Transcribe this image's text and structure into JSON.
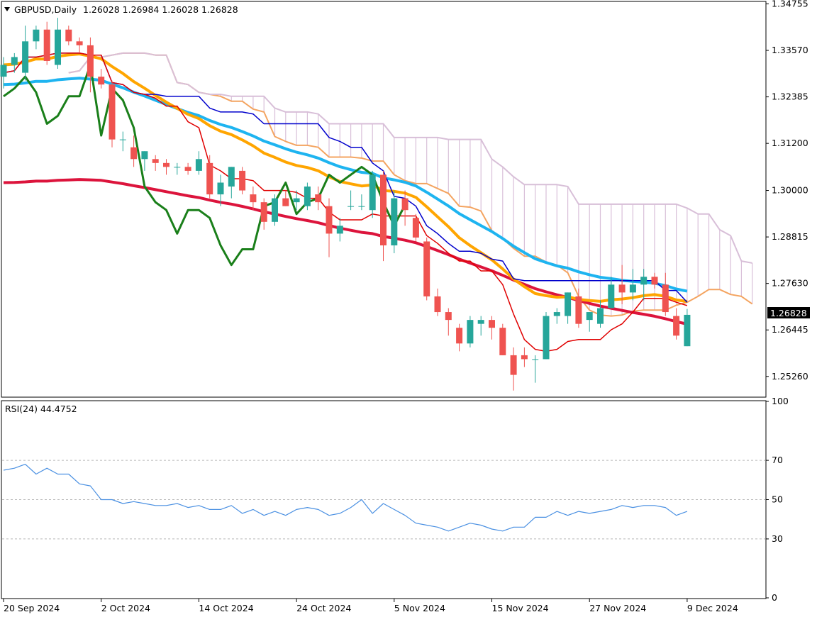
{
  "symbol_header": "GBPUSD,Daily",
  "ohlc_header": "1.26028 1.26984 1.26028 1.26828",
  "rsi_header": "RSI(24) 44.4752",
  "current_price_label": "1.26828",
  "colors": {
    "bull": "#26a69a",
    "bear": "#ef5350",
    "tenkan": "#e00000",
    "kijun": "#0000cc",
    "span_a": "#f4a460",
    "span_b": "#d8bfd8",
    "ma_orange": "#ffa500",
    "ma_blue": "#1eb4f0",
    "ma_red": "#dc143c",
    "chikou": "#1a7f1a",
    "rsi": "#4a90e2"
  },
  "chart_data": [
    {
      "type": "candlestick",
      "y_ticks": [
        "1.34755",
        "1.33570",
        "1.32385",
        "1.31200",
        "1.30000",
        "1.28815",
        "1.27630",
        "1.26445",
        "1.25260"
      ],
      "x_tick_labels": [
        "20 Sep 2024",
        "2 Oct 2024",
        "14 Oct 2024",
        "24 Oct 2024",
        "5 Nov 2024",
        "15 Nov 2024",
        "27 Nov 2024",
        "9 Dec 2024"
      ],
      "x_tick_index": [
        0,
        9,
        18,
        27,
        36,
        45,
        54,
        63
      ],
      "ylim": [
        1.2475,
        1.348
      ],
      "candles": [
        [
          1.329,
          1.334,
          1.326,
          1.332
        ],
        [
          1.332,
          1.335,
          1.33,
          1.334
        ],
        [
          1.33,
          1.342,
          1.328,
          1.338
        ],
        [
          1.338,
          1.342,
          1.336,
          1.341
        ],
        [
          1.341,
          1.343,
          1.332,
          1.333
        ],
        [
          1.332,
          1.344,
          1.331,
          1.341
        ],
        [
          1.341,
          1.342,
          1.337,
          1.338
        ],
        [
          1.338,
          1.339,
          1.335,
          1.337
        ],
        [
          1.337,
          1.339,
          1.325,
          1.329
        ],
        [
          1.329,
          1.331,
          1.326,
          1.327
        ],
        [
          1.327,
          1.328,
          1.311,
          1.313
        ],
        [
          1.313,
          1.315,
          1.31,
          1.313
        ],
        [
          1.311,
          1.314,
          1.306,
          1.308
        ],
        [
          1.308,
          1.31,
          1.305,
          1.31
        ],
        [
          1.308,
          1.309,
          1.305,
          1.307
        ],
        [
          1.307,
          1.308,
          1.304,
          1.306
        ],
        [
          1.306,
          1.307,
          1.304,
          1.306
        ],
        [
          1.306,
          1.307,
          1.304,
          1.305
        ],
        [
          1.305,
          1.31,
          1.304,
          1.308
        ],
        [
          1.307,
          1.309,
          1.298,
          1.299
        ],
        [
          1.299,
          1.304,
          1.296,
          1.302
        ],
        [
          1.301,
          1.306,
          1.298,
          1.306
        ],
        [
          1.305,
          1.306,
          1.299,
          1.3
        ],
        [
          1.299,
          1.301,
          1.295,
          1.297
        ],
        [
          1.297,
          1.298,
          1.29,
          1.292
        ],
        [
          1.292,
          1.299,
          1.291,
          1.298
        ],
        [
          1.298,
          1.3,
          1.296,
          1.296
        ],
        [
          1.297,
          1.3,
          1.295,
          1.298
        ],
        [
          1.296,
          1.302,
          1.295,
          1.301
        ],
        [
          1.299,
          1.301,
          1.295,
          1.297
        ],
        [
          1.296,
          1.298,
          1.283,
          1.289
        ],
        [
          1.289,
          1.293,
          1.287,
          1.291
        ],
        [
          1.296,
          1.3,
          1.295,
          1.296
        ],
        [
          1.296,
          1.299,
          1.295,
          1.296
        ],
        [
          1.295,
          1.305,
          1.293,
          1.304
        ],
        [
          1.304,
          1.305,
          1.282,
          1.286
        ],
        [
          1.286,
          1.3,
          1.284,
          1.298
        ],
        [
          1.298,
          1.3,
          1.291,
          1.295
        ],
        [
          1.293,
          1.294,
          1.287,
          1.288
        ],
        [
          1.287,
          1.288,
          1.272,
          1.273
        ],
        [
          1.273,
          1.275,
          1.268,
          1.269
        ],
        [
          1.269,
          1.27,
          1.263,
          1.267
        ],
        [
          1.265,
          1.266,
          1.259,
          1.261
        ],
        [
          1.261,
          1.268,
          1.26,
          1.267
        ],
        [
          1.266,
          1.268,
          1.263,
          1.267
        ],
        [
          1.267,
          1.268,
          1.262,
          1.265
        ],
        [
          1.265,
          1.266,
          1.258,
          1.258
        ],
        [
          1.258,
          1.26,
          1.249,
          1.253
        ],
        [
          1.258,
          1.26,
          1.255,
          1.257
        ],
        [
          1.257,
          1.258,
          1.251,
          1.257
        ],
        [
          1.257,
          1.269,
          1.257,
          1.268
        ],
        [
          1.268,
          1.27,
          1.266,
          1.269
        ],
        [
          1.268,
          1.274,
          1.266,
          1.274
        ],
        [
          1.273,
          1.275,
          1.265,
          1.266
        ],
        [
          1.267,
          1.269,
          1.264,
          1.269
        ],
        [
          1.266,
          1.272,
          1.265,
          1.27
        ],
        [
          1.27,
          1.278,
          1.27,
          1.276
        ],
        [
          1.276,
          1.281,
          1.271,
          1.274
        ],
        [
          1.274,
          1.28,
          1.272,
          1.276
        ],
        [
          1.276,
          1.28,
          1.272,
          1.278
        ],
        [
          1.278,
          1.279,
          1.275,
          1.276
        ],
        [
          1.276,
          1.279,
          1.268,
          1.269
        ],
        [
          1.268,
          1.27,
          1.262,
          1.263
        ],
        [
          1.2603,
          1.2698,
          1.2603,
          1.2683
        ]
      ]
    },
    {
      "type": "line",
      "title": "RSI(24) 44.4752",
      "ylim": [
        0,
        100
      ],
      "y_ticks": [
        100,
        70,
        50,
        30,
        0
      ],
      "levels": [
        70,
        50,
        30
      ],
      "values": [
        65,
        66,
        68,
        63,
        66,
        63,
        63,
        58,
        57,
        50,
        50,
        48,
        49,
        48,
        47,
        47,
        48,
        46,
        47,
        45,
        45,
        47,
        43,
        45,
        42,
        44,
        42,
        45,
        46,
        45,
        42,
        43,
        46,
        50,
        43,
        48,
        45,
        42,
        38,
        37,
        36,
        34,
        36,
        38,
        37,
        35,
        34,
        36,
        36,
        41,
        41,
        44,
        42,
        44,
        43,
        44,
        45,
        47,
        46,
        47,
        47,
        46,
        42,
        44
      ]
    }
  ]
}
